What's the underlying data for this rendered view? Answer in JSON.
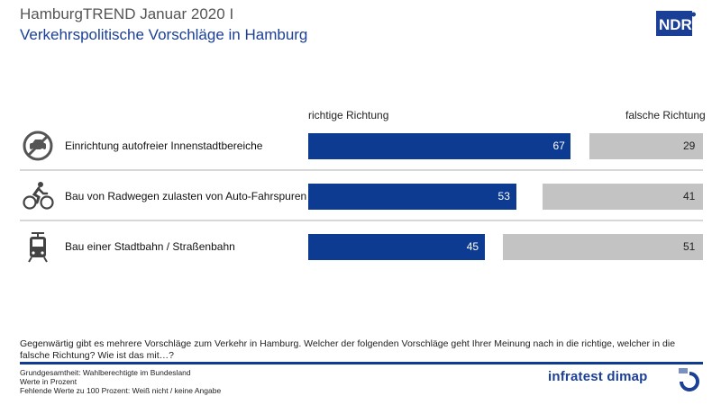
{
  "header": {
    "title": "HamburgTREND Januar 2020 I",
    "subtitle": "Verkehrspolitische Vorschläge in Hamburg",
    "logo_text": "NDR"
  },
  "chart_data": {
    "type": "bar",
    "orientation": "horizontal",
    "column_headers": {
      "positive": "richtige Richtung",
      "negative": "falsche Richtung"
    },
    "categories": [
      "Einrichtung autofreier Innenstadtbereiche",
      "Bau von Radwegen zulasten von Auto-Fahrspuren",
      "Bau einer Stadtbahn / Straßenbahn"
    ],
    "icons": [
      "no-car-icon",
      "cyclist-icon",
      "tram-icon"
    ],
    "series": [
      {
        "name": "richtige Richtung",
        "values": [
          67,
          53,
          45
        ],
        "color": "#0d3b91"
      },
      {
        "name": "falsche Richtung",
        "values": [
          29,
          41,
          51
        ],
        "color": "#c3c3c3"
      }
    ],
    "unit": "%"
  },
  "question": "Gegenwärtig gibt es mehrere Vorschläge zum Verkehr in Hamburg. Welcher der folgenden Vorschläge geht Ihrer Meinung nach in die richtige, welcher in die falsche Richtung?  Wie ist das mit…?",
  "footnotes": [
    "Grundgesamtheit:  Wahlberechtigte im Bundesland",
    "Werte in Prozent",
    "Fehlende  Werte zu 100 Prozent: Weiß nicht / keine Angabe"
  ],
  "brand": {
    "name": "infratest dimap",
    "accent": "#1b3f97"
  }
}
